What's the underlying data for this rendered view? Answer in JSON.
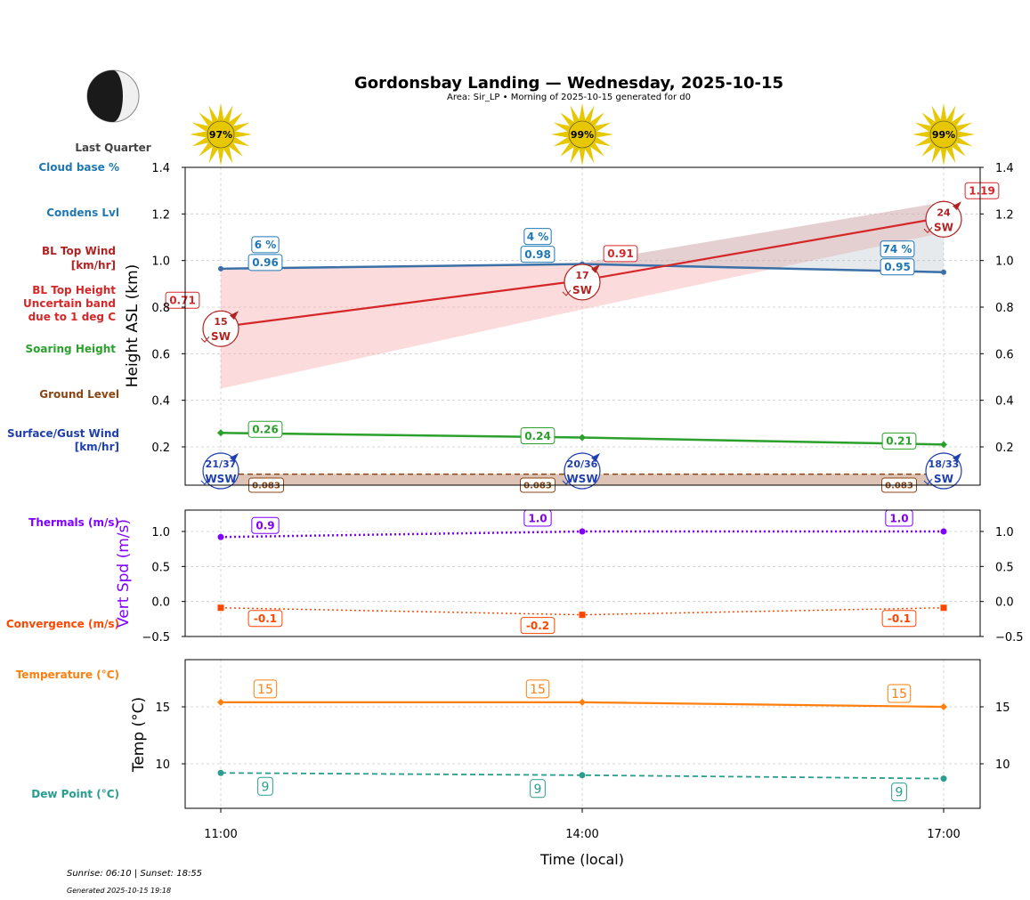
{
  "header": {
    "title": "Gordonsbay Landing — Wednesday, 2025-10-15",
    "subtitle": "Area: Sir_LP • Morning of 2025-10-15 generated for d0",
    "moon_phase": "Last Quarter"
  },
  "footer": {
    "sun_times": "Sunrise: 06:10 | Sunset: 18:55",
    "generated": "Generated 2025-10-15 19:18"
  },
  "colors": {
    "cloud": "#1f77b4",
    "bl_wind": "#b22222",
    "bl_top": "#d62728",
    "soaring": "#2ca02c",
    "ground": "#8b4513",
    "surface": "#1f3fae",
    "thermal": "#7f00ff",
    "convergence": "#ff4500",
    "temperature": "#ff7f0e",
    "dew": "#2a9d8f",
    "sun": "#e6c700"
  },
  "side_labels": {
    "cloud_base": "Cloud base %",
    "condens": "Condens Lvl",
    "bl_wind": [
      "BL Top Wind",
      "[km/hr]"
    ],
    "bl_top": [
      "BL Top Height",
      "Uncertain band",
      "due to 1 deg C"
    ],
    "soaring": "Soaring Height",
    "ground": "Ground Level",
    "surface": [
      "Surface/Gust Wind",
      "[km/hr]"
    ],
    "thermals": "Thermals (m/s)",
    "convergence": "Convergence (m/s)",
    "temperature": "Temperature (°C)",
    "dew": "Dew Point (°C)"
  },
  "chart_data": [
    {
      "type": "line",
      "name": "height",
      "x": [
        "11:00",
        "14:00",
        "17:00"
      ],
      "ylabel": "Height ASL (km)",
      "ylim": [
        0.03,
        1.4
      ],
      "yticks": [
        "0.2",
        "0.4",
        "0.6",
        "0.8",
        "1.0",
        "1.2",
        "1.4"
      ],
      "sun_percent": [
        "97%",
        "99%",
        "99%"
      ],
      "cloud_percent": [
        "6 %",
        "4 %",
        "74 %"
      ],
      "series": [
        {
          "name": "Condens Lvl",
          "values": [
            0.965,
            0.985,
            0.95
          ],
          "labels": [
            "0.96",
            "0.98",
            "0.95"
          ]
        },
        {
          "name": "BL Top Height",
          "values": [
            0.715,
            0.915,
            1.185
          ],
          "labels": [
            "0.71",
            "0.91",
            "1.19"
          ]
        },
        {
          "name": "BL Top band upper",
          "values": [
            0.96,
            0.99,
            1.25
          ]
        },
        {
          "name": "BL Top band lower",
          "values": [
            0.45,
            0.79,
            1.12
          ]
        },
        {
          "name": "Soaring Height",
          "values": [
            0.26,
            0.24,
            0.21
          ],
          "labels": [
            "0.26",
            "0.24",
            "0.21"
          ]
        },
        {
          "name": "Ground Level",
          "values": [
            0.083,
            0.083,
            0.083
          ],
          "labels": [
            "0.083",
            "0.083",
            "0.083"
          ]
        }
      ],
      "bl_wind": [
        {
          "speed": "15",
          "dir": "SW"
        },
        {
          "speed": "17",
          "dir": "SW"
        },
        {
          "speed": "24",
          "dir": "SW"
        }
      ],
      "surface_wind": [
        {
          "speed": "21/37",
          "dir": "WSW"
        },
        {
          "speed": "20/36",
          "dir": "WSW"
        },
        {
          "speed": "18/33",
          "dir": "SW"
        }
      ]
    },
    {
      "type": "line",
      "name": "vertical-speed",
      "x": [
        "11:00",
        "14:00",
        "17:00"
      ],
      "ylabel": "Vert Spd (m/s)",
      "ylim": [
        -0.5,
        1.3
      ],
      "yticks": [
        "−0.5",
        "0.0",
        "0.5",
        "1.0"
      ],
      "series": [
        {
          "name": "Thermals",
          "values": [
            0.92,
            1.0,
            1.0
          ],
          "labels": [
            "0.9",
            "1.0",
            "1.0"
          ]
        },
        {
          "name": "Convergence",
          "values": [
            -0.09,
            -0.19,
            -0.09
          ],
          "labels": [
            "-0.1",
            "-0.2",
            "-0.1"
          ]
        }
      ]
    },
    {
      "type": "line",
      "name": "temperature",
      "x": [
        "11:00",
        "14:00",
        "17:00"
      ],
      "xlabel": "Time (local)",
      "ylabel": "Temp (°C)",
      "ylim": [
        6,
        19
      ],
      "yticks": [
        "10",
        "15"
      ],
      "series": [
        {
          "name": "Temperature",
          "values": [
            15.4,
            15.4,
            15.0
          ],
          "labels": [
            "15",
            "15",
            "15"
          ]
        },
        {
          "name": "Dew Point",
          "values": [
            9.2,
            9.0,
            8.7
          ],
          "labels": [
            "9",
            "9",
            "9"
          ]
        }
      ]
    }
  ]
}
